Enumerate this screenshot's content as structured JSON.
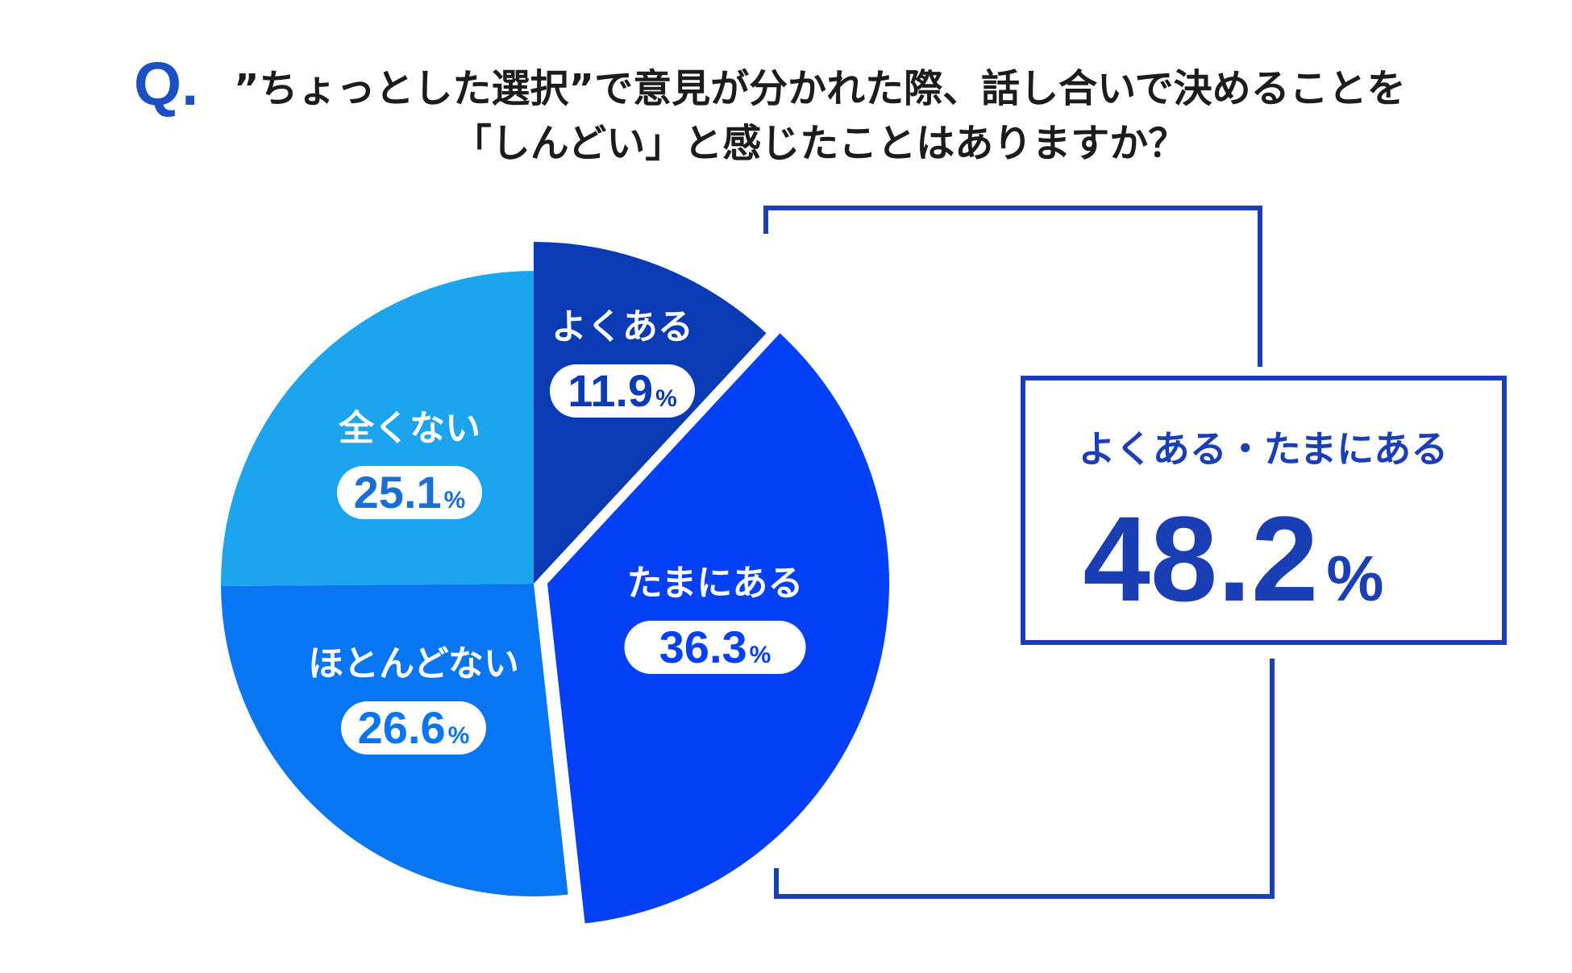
{
  "question": {
    "mark": "Q.",
    "line1": "”ちょっとした選択”で意見が分かれた際、話し合いで決めることを",
    "line2": "「しんどい」と感じたことはありますか？"
  },
  "chart_data": {
    "type": "pie",
    "unit": "%",
    "slices": [
      {
        "label": "よくある",
        "value": 11.9,
        "display": "11.9",
        "color": "#0a3bb4",
        "text_color": "#0a3bb4"
      },
      {
        "label": "たまにある",
        "value": 36.3,
        "display": "36.3",
        "color": "#0440f6",
        "text_color": "#0440f6"
      },
      {
        "label": "ほとんどない",
        "value": 26.6,
        "display": "26.6",
        "color": "#0876f3",
        "text_color": "#0876f3"
      },
      {
        "label": "全くない",
        "value": 25.1,
        "display": "25.1",
        "color": "#1ca4ef",
        "text_color": "#1a6fd3"
      }
    ]
  },
  "summary": {
    "label": "よくある・たまにある",
    "value": "48.2",
    "unit": "%"
  },
  "colors": {
    "accent": "#1a3fb5",
    "title_text": "#1c1c1c",
    "background": "#ffffff"
  }
}
